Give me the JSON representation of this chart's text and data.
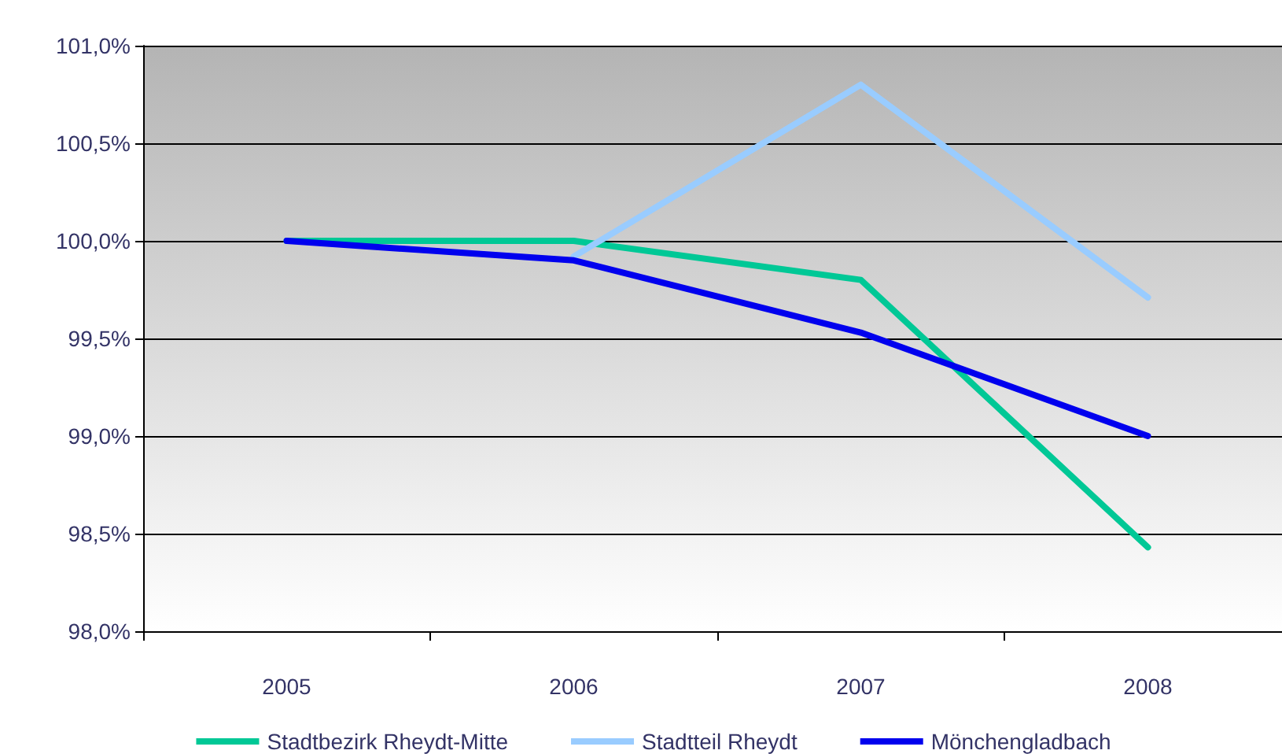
{
  "chart_data": {
    "type": "line",
    "categories": [
      "2005",
      "2006",
      "2007",
      "2008"
    ],
    "series": [
      {
        "name": "Stadtbezirk Rheydt-Mitte",
        "color": "#00c896",
        "values": [
          100.0,
          100.0,
          99.8,
          98.43
        ]
      },
      {
        "name": "Stadtteil Rheydt",
        "color": "#99ccff",
        "values": [
          null,
          99.92,
          100.8,
          99.71
        ]
      },
      {
        "name": "Mönchengladbach",
        "color": "#0000ee",
        "values": [
          100.0,
          99.9,
          99.53,
          99.0
        ]
      }
    ],
    "ylim": [
      98.0,
      101.0
    ],
    "yticks": [
      {
        "value": 98.0,
        "label": "98,0%"
      },
      {
        "value": 98.5,
        "label": "98,5%"
      },
      {
        "value": 99.0,
        "label": "99,0%"
      },
      {
        "value": 99.5,
        "label": "99,5%"
      },
      {
        "value": 100.0,
        "label": "100,0%"
      },
      {
        "value": 100.5,
        "label": "100,5%"
      },
      {
        "value": 101.0,
        "label": "101,0%"
      }
    ],
    "grid": "y",
    "legend": "bottom",
    "marker": "none",
    "line_style": "solid"
  }
}
